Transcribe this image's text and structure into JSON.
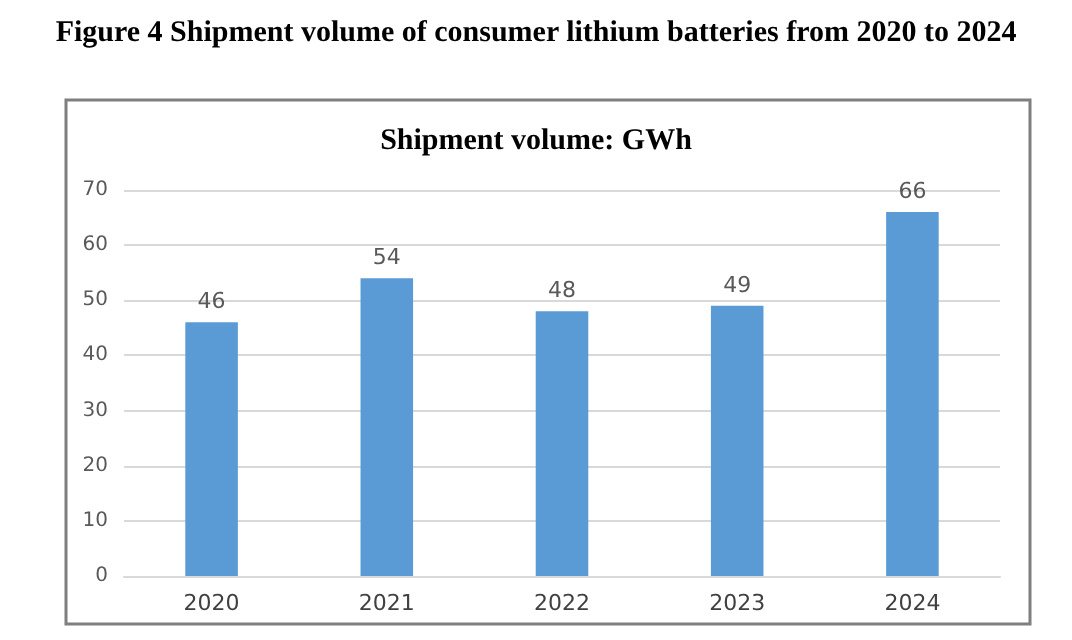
{
  "chart_data": {
    "type": "bar",
    "title": "Figure 4 Shipment volume of consumer lithium batteries from 2020 to 2024",
    "subtitle": "Shipment volume: GWh",
    "categories": [
      "2020",
      "2021",
      "2022",
      "2023",
      "2024"
    ],
    "values": [
      46,
      54,
      48,
      49,
      66
    ],
    "color": "#5b9bd5",
    "ylim": [
      0,
      70
    ],
    "yticks": [
      0,
      10,
      20,
      30,
      40,
      50,
      60,
      70
    ],
    "grid": "y",
    "data_labels": true
  }
}
